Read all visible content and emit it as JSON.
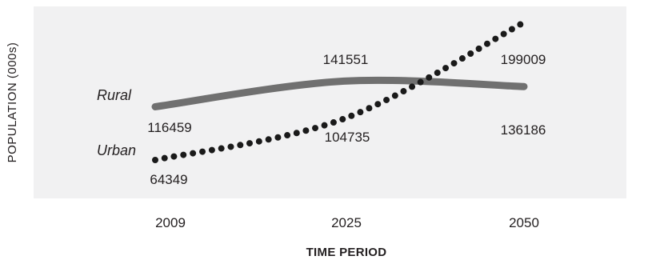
{
  "chart_data": {
    "type": "line",
    "categories": [
      "2009",
      "2025",
      "2050"
    ],
    "xlabel": "TIME PERIOD",
    "ylabel": "POPULATION (000s)",
    "grid": false,
    "legend": "inline-left",
    "series": [
      {
        "name": "Rural",
        "values": [
          116459,
          141551,
          136186
        ],
        "color": "#707070",
        "style": "solid"
      },
      {
        "name": "Urban",
        "values": [
          64349,
          104735,
          199009
        ],
        "color": "#1a1a1a",
        "style": "dotted"
      }
    ],
    "colors": {
      "plot_background": "#f1f1f2"
    }
  }
}
